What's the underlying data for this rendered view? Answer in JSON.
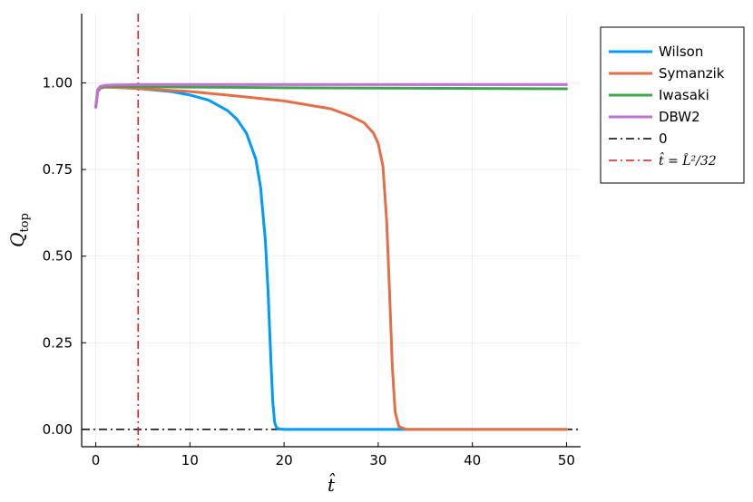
{
  "chart_data": {
    "type": "line",
    "title": "",
    "xlabel": "t̂",
    "ylabel": "Q",
    "ylabel_sub": "top",
    "xlim": [
      -1.5,
      51.5
    ],
    "ylim": [
      -0.05,
      1.2
    ],
    "xticks": [
      0,
      10,
      20,
      30,
      40,
      50
    ],
    "xtick_labels": [
      "0",
      "10",
      "20",
      "30",
      "40",
      "50"
    ],
    "yticks": [
      0.0,
      0.25,
      0.5,
      0.75,
      1.0
    ],
    "ytick_labels": [
      "0.00",
      "0.25",
      "0.50",
      "0.75",
      "1.00"
    ],
    "grid": true,
    "legend_position": "outside-top-right",
    "series": [
      {
        "name": "Wilson",
        "color": "#009AFA",
        "style": "solid",
        "x": [
          0,
          0.2,
          0.5,
          1,
          2,
          4,
          6,
          8,
          10,
          12,
          14,
          15,
          16,
          17,
          17.5,
          18,
          18.3,
          18.6,
          18.8,
          19.0,
          19.2,
          19.5,
          20,
          25,
          30,
          35,
          40,
          45,
          50
        ],
        "y": [
          0.93,
          0.975,
          0.985,
          0.988,
          0.988,
          0.985,
          0.98,
          0.975,
          0.965,
          0.95,
          0.92,
          0.895,
          0.855,
          0.78,
          0.7,
          0.55,
          0.4,
          0.2,
          0.08,
          0.02,
          0.005,
          0.001,
          0.0,
          0.0,
          0.0,
          0.0,
          0.0,
          0.0,
          0.0
        ]
      },
      {
        "name": "Symanzik",
        "color": "#E36F47",
        "style": "solid",
        "x": [
          0,
          0.2,
          0.5,
          1,
          2,
          5,
          10,
          15,
          20,
          25,
          27,
          28.5,
          29.5,
          30,
          30.5,
          30.9,
          31.2,
          31.5,
          31.8,
          32.2,
          33,
          35,
          40,
          45,
          50
        ],
        "y": [
          0.93,
          0.975,
          0.985,
          0.988,
          0.987,
          0.983,
          0.975,
          0.962,
          0.948,
          0.925,
          0.905,
          0.885,
          0.855,
          0.825,
          0.76,
          0.6,
          0.4,
          0.18,
          0.05,
          0.008,
          0.0,
          0.0,
          0.0,
          0.0,
          0.0
        ]
      },
      {
        "name": "Iwasaki",
        "color": "#3EA44E",
        "style": "solid",
        "x": [
          0,
          0.2,
          0.5,
          1,
          2,
          5,
          10,
          20,
          30,
          40,
          50
        ],
        "y": [
          0.93,
          0.978,
          0.987,
          0.99,
          0.99,
          0.989,
          0.988,
          0.986,
          0.985,
          0.984,
          0.983
        ]
      },
      {
        "name": "DBW2",
        "color": "#C271D2",
        "style": "solid",
        "x": [
          0,
          0.2,
          0.5,
          1,
          2,
          5,
          10,
          20,
          30,
          40,
          50
        ],
        "y": [
          0.93,
          0.98,
          0.99,
          0.993,
          0.994,
          0.995,
          0.995,
          0.995,
          0.995,
          0.995,
          0.995
        ]
      }
    ],
    "hlines": [
      {
        "name": "0",
        "y": 0.0,
        "color": "#000000",
        "style": "dashdot"
      }
    ],
    "vlines": [
      {
        "name": "t̂ = L̂²/32",
        "x": 4.5,
        "color": "#E31A1C",
        "style": "dashdot"
      }
    ]
  }
}
